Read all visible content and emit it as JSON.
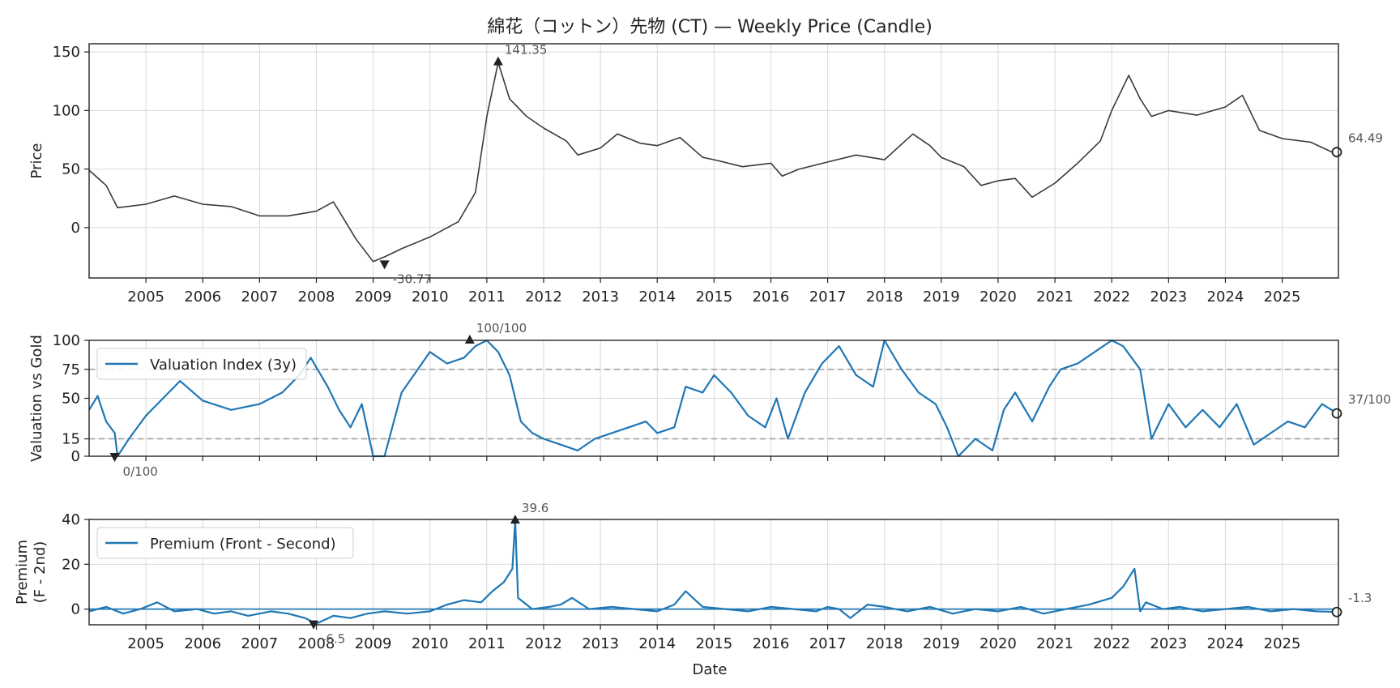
{
  "title": "綿花（コットン）先物 (CT) — Weekly Price (Candle)",
  "x_label": "Date",
  "colors": {
    "price": "#3a3a3a",
    "blue": "#1f77b4",
    "grid": "#d9d9d9",
    "ref": "#999999",
    "marker": "#222222"
  },
  "chart_data": [
    {
      "type": "line",
      "name": "price",
      "ylabel": "Price",
      "xlim": [
        "2004-01",
        "2025-12"
      ],
      "ylim": [
        -43,
        157
      ],
      "yticks": [
        0,
        50,
        100,
        150
      ],
      "x_ticks": [
        "2005",
        "2006",
        "2007",
        "2008",
        "2009",
        "2010",
        "2011",
        "2012",
        "2013",
        "2014",
        "2015",
        "2016",
        "2017",
        "2018",
        "2019",
        "2020",
        "2021",
        "2022",
        "2023",
        "2024",
        "2025"
      ],
      "x": [
        2004.0,
        2004.3,
        2004.5,
        2005.0,
        2005.5,
        2006.0,
        2006.5,
        2007.0,
        2007.5,
        2008.0,
        2008.3,
        2008.7,
        2009.0,
        2009.2,
        2009.5,
        2010.0,
        2010.5,
        2010.8,
        2011.0,
        2011.2,
        2011.4,
        2011.7,
        2012.0,
        2012.4,
        2012.6,
        2013.0,
        2013.3,
        2013.7,
        2014.0,
        2014.4,
        2014.8,
        2015.0,
        2015.5,
        2016.0,
        2016.2,
        2016.5,
        2017.0,
        2017.5,
        2018.0,
        2018.5,
        2018.8,
        2019.0,
        2019.4,
        2019.7,
        2020.0,
        2020.3,
        2020.6,
        2021.0,
        2021.4,
        2021.8,
        2022.0,
        2022.3,
        2022.5,
        2022.7,
        2023.0,
        2023.5,
        2024.0,
        2024.3,
        2024.6,
        2025.0,
        2025.5,
        2025.9
      ],
      "y": [
        49,
        36,
        17,
        20,
        27,
        20,
        18,
        10,
        10,
        14,
        22,
        -10,
        -29,
        -25,
        -18,
        -8,
        5,
        30,
        95,
        141,
        110,
        95,
        85,
        74,
        62,
        68,
        80,
        72,
        70,
        77,
        60,
        58,
        52,
        55,
        44,
        50,
        56,
        62,
        58,
        80,
        70,
        60,
        52,
        36,
        40,
        42,
        26,
        38,
        55,
        74,
        100,
        130,
        110,
        95,
        100,
        96,
        103,
        113,
        83,
        76,
        73,
        64
      ],
      "annotations": [
        {
          "label": "141.35",
          "x": 2011.2,
          "y": 141.35,
          "kind": "max"
        },
        {
          "label": "-30.77",
          "x": 2009.2,
          "y": -30.77,
          "kind": "min"
        },
        {
          "label": "64.49",
          "x": 2025.97,
          "y": 64.49,
          "kind": "last"
        }
      ]
    },
    {
      "type": "line",
      "name": "valuation",
      "ylabel": "Valuation vs Gold",
      "ylim": [
        0,
        100
      ],
      "yticks": [
        0,
        15,
        50,
        75,
        100
      ],
      "ref_lines": [
        15,
        75
      ],
      "legend": "top-left",
      "series": [
        {
          "name": "Valuation Index (3y)"
        }
      ],
      "x": [
        2004.0,
        2004.15,
        2004.3,
        2004.45,
        2004.5,
        2004.7,
        2005.0,
        2005.3,
        2005.6,
        2006.0,
        2006.5,
        2007.0,
        2007.4,
        2007.7,
        2007.9,
        2008.2,
        2008.4,
        2008.6,
        2008.8,
        2009.0,
        2009.2,
        2009.5,
        2010.0,
        2010.3,
        2010.6,
        2010.8,
        2011.0,
        2011.2,
        2011.4,
        2011.6,
        2011.8,
        2012.0,
        2012.3,
        2012.6,
        2012.9,
        2013.2,
        2013.5,
        2013.8,
        2014.0,
        2014.3,
        2014.5,
        2014.8,
        2015.0,
        2015.3,
        2015.6,
        2015.9,
        2016.1,
        2016.3,
        2016.6,
        2016.9,
        2017.2,
        2017.5,
        2017.8,
        2018.0,
        2018.3,
        2018.6,
        2018.9,
        2019.1,
        2019.3,
        2019.6,
        2019.9,
        2020.1,
        2020.3,
        2020.6,
        2020.9,
        2021.1,
        2021.4,
        2021.7,
        2022.0,
        2022.2,
        2022.5,
        2022.7,
        2023.0,
        2023.3,
        2023.6,
        2023.9,
        2024.2,
        2024.5,
        2024.8,
        2025.1,
        2025.4,
        2025.7,
        2025.97
      ],
      "y": [
        40,
        52,
        30,
        20,
        0,
        15,
        35,
        50,
        65,
        48,
        40,
        45,
        55,
        70,
        85,
        60,
        40,
        25,
        45,
        0,
        0,
        55,
        90,
        80,
        85,
        95,
        100,
        90,
        70,
        30,
        20,
        15,
        10,
        5,
        15,
        20,
        25,
        30,
        20,
        25,
        60,
        55,
        70,
        55,
        35,
        25,
        50,
        15,
        55,
        80,
        95,
        70,
        60,
        100,
        75,
        55,
        45,
        25,
        0,
        15,
        5,
        40,
        55,
        30,
        60,
        75,
        80,
        90,
        100,
        95,
        75,
        15,
        45,
        25,
        40,
        25,
        45,
        10,
        20,
        30,
        25,
        45,
        37
      ],
      "annotations": [
        {
          "label": "100/100",
          "x": 2010.7,
          "y": 100,
          "kind": "max"
        },
        {
          "label": "0/100",
          "x": 2004.45,
          "y": 0,
          "kind": "min"
        },
        {
          "label": "37/100",
          "x": 2025.97,
          "y": 37,
          "kind": "last"
        }
      ]
    },
    {
      "type": "line",
      "name": "premium",
      "ylabel": "Premium\n(F - 2nd)",
      "ylim": [
        -7,
        40
      ],
      "yticks": [
        0,
        20,
        40
      ],
      "ref_lines": [
        0
      ],
      "legend": "top-left",
      "series": [
        {
          "name": "Premium (Front - Second)"
        }
      ],
      "x": [
        2004.0,
        2004.3,
        2004.6,
        2004.9,
        2005.2,
        2005.5,
        2005.9,
        2006.2,
        2006.5,
        2006.8,
        2007.2,
        2007.5,
        2007.8,
        2008.0,
        2008.3,
        2008.6,
        2008.9,
        2009.2,
        2009.6,
        2010.0,
        2010.3,
        2010.6,
        2010.9,
        2011.1,
        2011.3,
        2011.45,
        2011.5,
        2011.55,
        2011.8,
        2012.1,
        2012.3,
        2012.5,
        2012.8,
        2013.2,
        2013.6,
        2014.0,
        2014.3,
        2014.5,
        2014.8,
        2015.2,
        2015.6,
        2016.0,
        2016.4,
        2016.8,
        2017.0,
        2017.2,
        2017.4,
        2017.7,
        2018.0,
        2018.4,
        2018.8,
        2019.2,
        2019.6,
        2020.0,
        2020.4,
        2020.8,
        2021.2,
        2021.6,
        2022.0,
        2022.2,
        2022.4,
        2022.5,
        2022.6,
        2022.9,
        2023.2,
        2023.6,
        2024.0,
        2024.4,
        2024.8,
        2025.2,
        2025.6,
        2025.97
      ],
      "y": [
        -1,
        1,
        -2,
        0,
        3,
        -1,
        0,
        -2,
        -1,
        -3,
        -1,
        -2,
        -4,
        -6.5,
        -3,
        -4,
        -2,
        -1,
        -2,
        -1,
        2,
        4,
        3,
        8,
        12,
        18,
        39.6,
        5,
        0,
        1,
        2,
        5,
        0,
        1,
        0,
        -1,
        2,
        8,
        1,
        0,
        -1,
        1,
        0,
        -1,
        1,
        0,
        -4,
        2,
        1,
        -1,
        1,
        -2,
        0,
        -1,
        1,
        -2,
        0,
        2,
        5,
        10,
        18,
        -1,
        3,
        0,
        1,
        -1,
        0,
        1,
        -1,
        0,
        -1,
        -1.3
      ],
      "annotations": [
        {
          "label": "39.6",
          "x": 2011.5,
          "y": 39.6,
          "kind": "max"
        },
        {
          "label": "-6.5",
          "x": 2007.95,
          "y": -6.5,
          "kind": "min"
        },
        {
          "label": "-1.3",
          "x": 2025.97,
          "y": -1.3,
          "kind": "last"
        }
      ]
    }
  ]
}
